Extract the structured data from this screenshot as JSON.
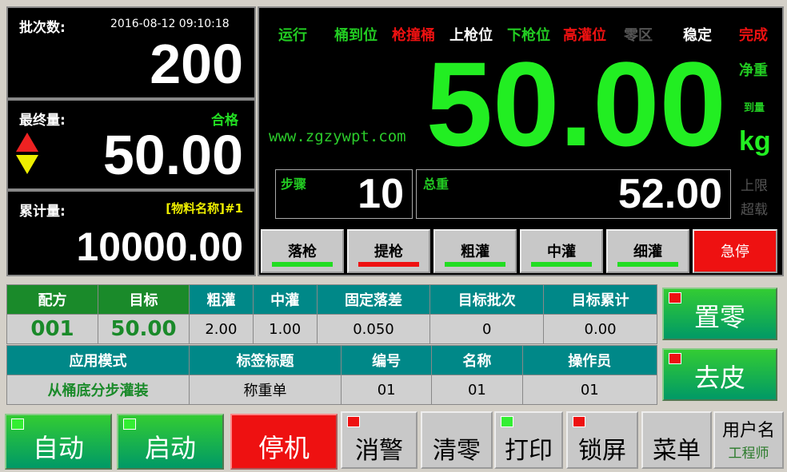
{
  "left": {
    "batch_label": "批次数:",
    "datetime": "2016-08-12  09:10:18",
    "batch_value": "200",
    "final_label": "最终量:",
    "final_status": "合格",
    "final_value": "50.00",
    "cumulative_label": "累计量:",
    "material": "[物料名称]#1",
    "cumulative_value": "10000.00"
  },
  "status": [
    {
      "label": "运行",
      "color": "#22cc22"
    },
    {
      "label": "桶到位",
      "color": "#22cc22"
    },
    {
      "label": "枪撞桶",
      "color": "#ee1111"
    },
    {
      "label": "上枪位",
      "color": "#ffffff"
    },
    {
      "label": "下枪位",
      "color": "#22cc22"
    },
    {
      "label": "高灌位",
      "color": "#ee1111"
    },
    {
      "label": "零区",
      "color": "#555555"
    },
    {
      "label": "稳定",
      "color": "#ffffff"
    },
    {
      "label": "完成",
      "color": "#ee1111"
    }
  ],
  "main": {
    "weight": "50.00",
    "net_label": "净重",
    "reached_label": "到量",
    "unit": "kg",
    "upper_label": "上限",
    "overload_label": "超载",
    "step_label": "步骤",
    "step_value": "10",
    "gross_label": "总重",
    "gross_value": "52.00"
  },
  "ops": [
    {
      "label": "落枪",
      "bar": "#22dd22"
    },
    {
      "label": "提枪",
      "bar": "#ee1111"
    },
    {
      "label": "粗灌",
      "bar": "#22dd22"
    },
    {
      "label": "中灌",
      "bar": "#22dd22"
    },
    {
      "label": "细灌",
      "bar": "#22dd22"
    }
  ],
  "estop": "急停",
  "table1": {
    "headers": [
      "配方",
      "目标",
      "粗灌",
      "中灌",
      "固定落差",
      "目标批次",
      "目标累计"
    ],
    "values": [
      "001",
      "50.00",
      "2.00",
      "1.00",
      "0.050",
      "0",
      "0.00"
    ]
  },
  "table2": {
    "headers": [
      "应用模式",
      "标签标题",
      "编号",
      "名称",
      "操作员"
    ],
    "values": [
      "从桶底分步灌装",
      "称重单",
      "01",
      "01",
      "01"
    ]
  },
  "side_buttons": [
    "置零",
    "去皮"
  ],
  "bottom": {
    "auto": "自动",
    "start": "启动",
    "stop": "停机",
    "alarm": "消警",
    "clear": "清零",
    "print": "打印",
    "lock": "锁屏",
    "menu": "菜单",
    "user_label": "用户名",
    "user": "工程师"
  },
  "watermark": "www.zgzywpt.com"
}
